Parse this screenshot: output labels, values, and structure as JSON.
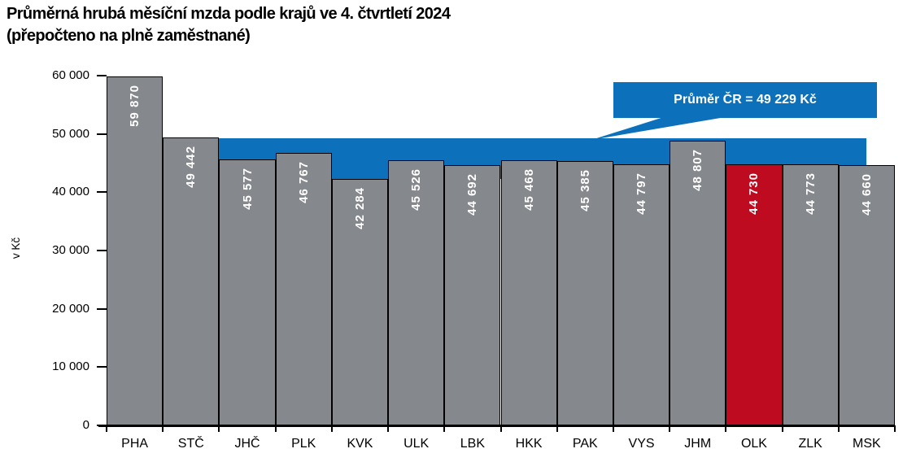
{
  "title": {
    "line1": "Průměrná hrubá měsíční mzda podle krajů ve 4. čtvrtletí 2024",
    "line2": "(přepočteno na plně zaměstnané)"
  },
  "y_axis": {
    "label": "v Kč",
    "ticks": [
      "60 000",
      "50 000",
      "40 000",
      "30 000",
      "20 000",
      "10 000",
      "0"
    ]
  },
  "chart_data": {
    "type": "bar",
    "title": "Průměrná hrubá měsíční mzda podle krajů ve 4. čtvrtletí 2024 (přepočteno na plně zaměstnané)",
    "xlabel": "",
    "ylabel": "v Kč",
    "ylim": [
      0,
      60000
    ],
    "y_tick_step": 10000,
    "grid": false,
    "legend": "none",
    "categories": [
      "PHA",
      "STČ",
      "JHČ",
      "PLK",
      "KVK",
      "ULK",
      "LBK",
      "HKK",
      "PAK",
      "VYS",
      "JHM",
      "OLK",
      "ZLK",
      "MSK"
    ],
    "values": [
      59870,
      49442,
      45577,
      46767,
      42284,
      45526,
      44692,
      45468,
      45385,
      44797,
      48807,
      44730,
      44773,
      44660
    ],
    "value_labels": [
      "59 870",
      "49 442",
      "45 577",
      "46 767",
      "42 284",
      "45 526",
      "44 692",
      "45 468",
      "45 385",
      "44 797",
      "48 807",
      "44 730",
      "44 773",
      "44 660"
    ],
    "highlight_category": "OLK",
    "average": {
      "value": 49229,
      "label": "Průměr ČR = 49 229 Kč"
    },
    "colors": {
      "bar": "#85888C",
      "highlight": "#BE0B1F",
      "band": "#0C71BA",
      "outline": "#000000",
      "value_label": "#FFFFFF"
    }
  }
}
